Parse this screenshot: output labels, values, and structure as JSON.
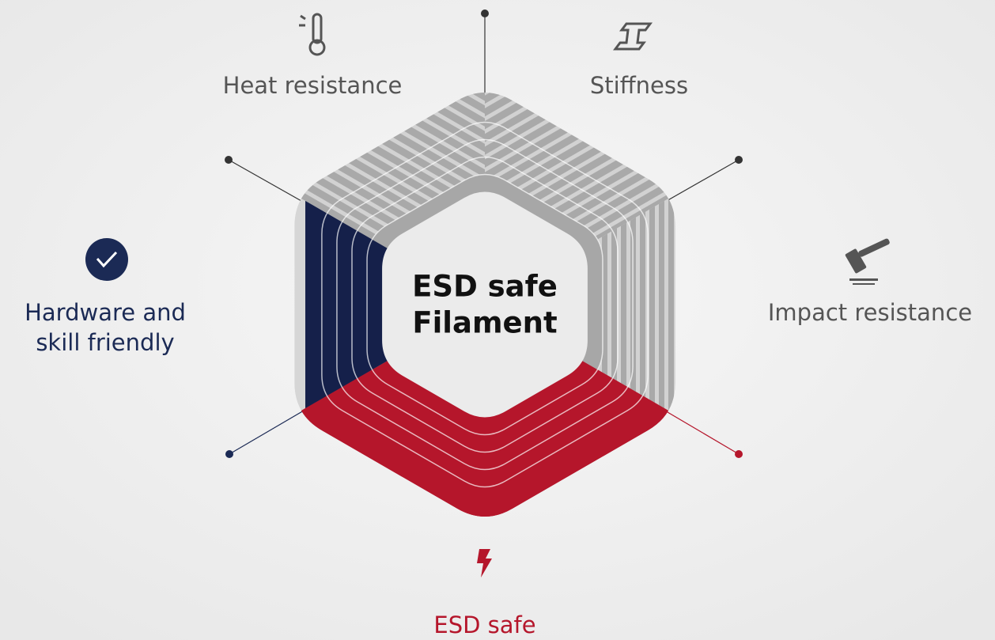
{
  "center": {
    "lines": [
      "ESD safe",
      "Filament"
    ]
  },
  "properties": [
    {
      "lines": [
        "Heat resistance"
      ]
    },
    {
      "lines": [
        "Stiffness"
      ]
    },
    {
      "lines": [
        "Impact resistance"
      ]
    },
    {
      "lines": [
        "ESD safe"
      ]
    },
    {
      "lines": [
        "Hardware and",
        "skill friendly"
      ]
    }
  ]
}
